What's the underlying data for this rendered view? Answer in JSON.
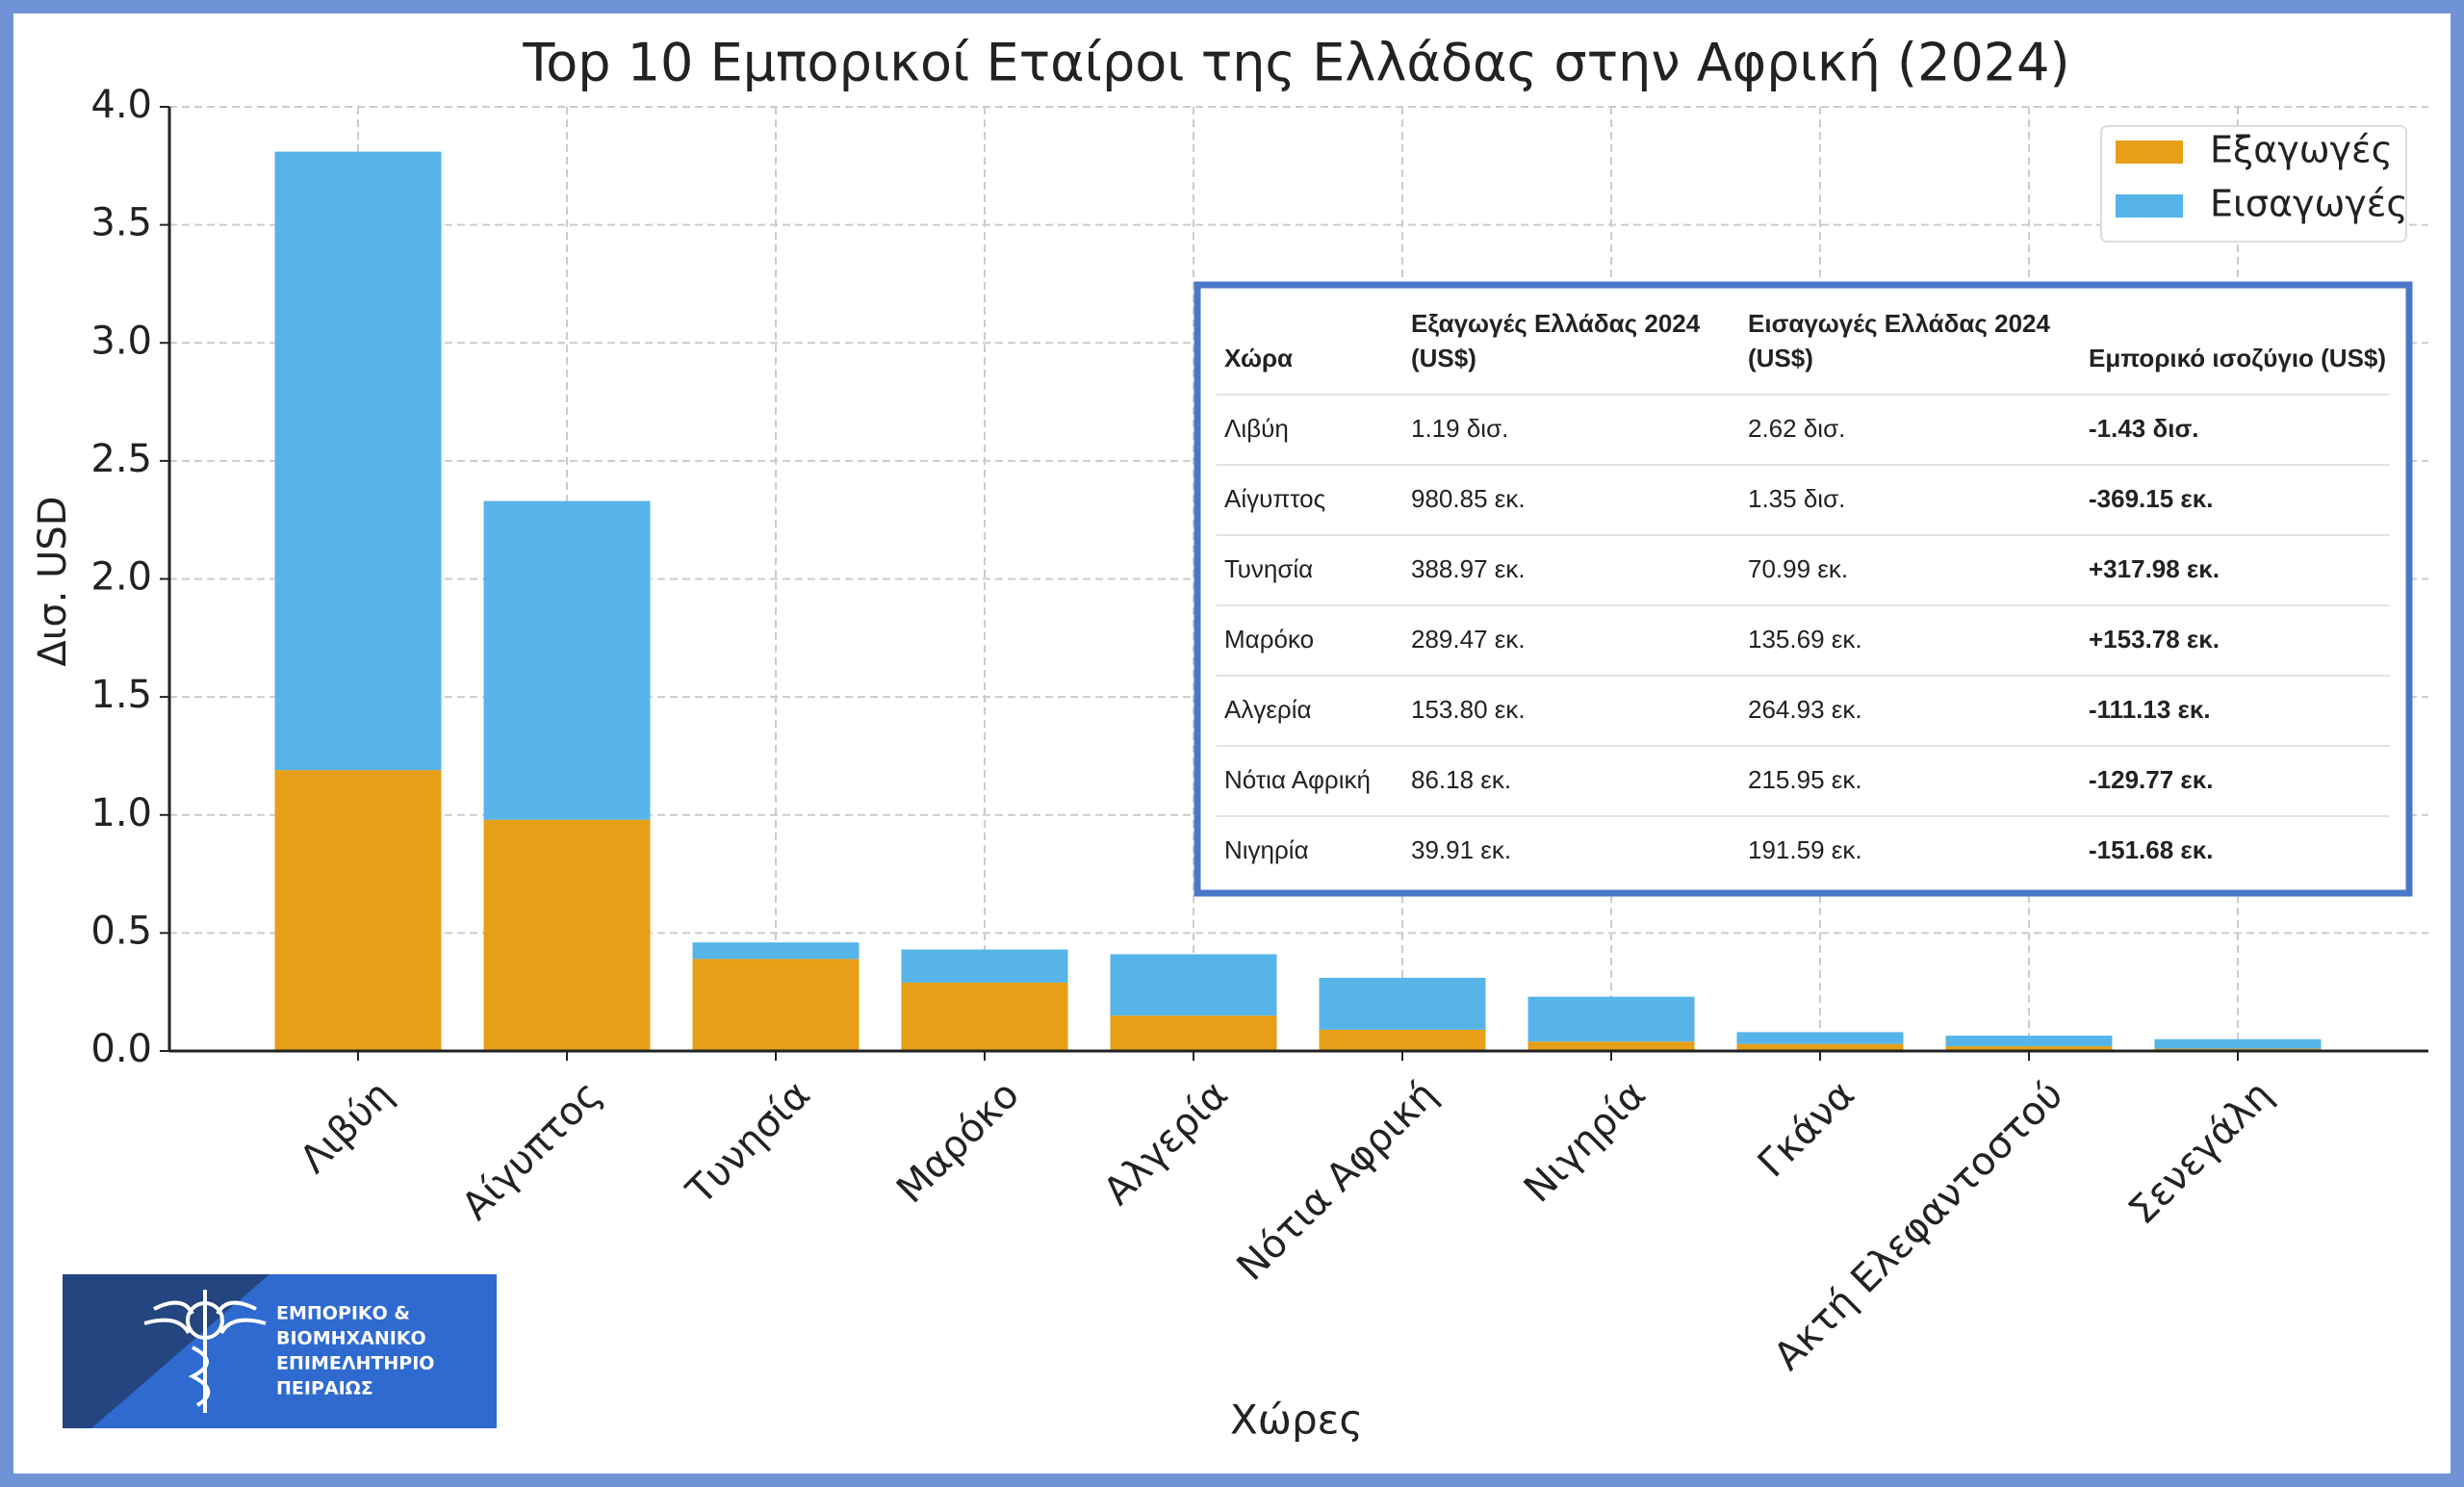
{
  "chart_data": {
    "type": "bar",
    "stacked": true,
    "title": "Top 10 Εμπορικοί Εταίροι της Ελλάδας στην Αφρική (2024)",
    "x_label": "Χώρες",
    "y_label": "Δισ. USD",
    "categories": [
      "Λιβύη",
      "Αίγυπτος",
      "Τυνησία",
      "Μαρόκο",
      "Αλγερία",
      "Νότια Αφρική",
      "Νιγηρία",
      "Γκάνα",
      "Ακτή Ελεφαντοστού",
      "Σενεγάλη"
    ],
    "series": [
      {
        "name": "Εξαγωγές",
        "color": "#e69f17",
        "values": [
          1.19,
          0.98,
          0.39,
          0.29,
          0.15,
          0.09,
          0.04,
          0.03,
          0.02,
          0.01
        ]
      },
      {
        "name": "Εισαγωγές",
        "color": "#56b4e9",
        "values": [
          2.62,
          1.35,
          0.07,
          0.14,
          0.26,
          0.22,
          0.19,
          0.05,
          0.045,
          0.04
        ]
      }
    ],
    "ylim": [
      0,
      4
    ],
    "yticks": [
      {
        "value": 0,
        "label": "0.0"
      },
      0.5,
      {
        "value": 1,
        "label": "1.0"
      },
      1.5,
      {
        "value": 2,
        "label": "2.0"
      },
      2.5,
      {
        "value": 3,
        "label": "3.0"
      },
      3.5,
      {
        "value": 4,
        "label": "4.0"
      }
    ],
    "grid": true,
    "legend": "upper right"
  },
  "table": {
    "header": [
      [
        "Χώρα"
      ],
      [
        "Εξαγωγές Ελλάδας 2024",
        "(US$)"
      ],
      [
        "Εισαγωγές Ελλάδας 2024",
        "(US$)"
      ],
      [
        "Εμπορικό ισοζύγιο (US$)"
      ]
    ],
    "rows": [
      [
        "Λιβύη",
        "1.19 δισ.",
        "2.62 δισ.",
        "-1.43 δισ."
      ],
      [
        "Αίγυπτος",
        "980.85 εκ.",
        "1.35 δισ.",
        "-369.15 εκ."
      ],
      [
        "Τυνησία",
        "388.97 εκ.",
        "70.99 εκ.",
        "+317.98 εκ."
      ],
      [
        "Μαρόκο",
        "289.47 εκ.",
        "135.69 εκ.",
        "+153.78 εκ."
      ],
      [
        "Αλγερία",
        "153.80 εκ.",
        "264.93 εκ.",
        "-111.13 εκ."
      ],
      [
        "Νότια Αφρική",
        "86.18 εκ.",
        "215.95 εκ.",
        "-129.77 εκ."
      ],
      [
        "Νιγηρία",
        "39.91 εκ.",
        "191.59 εκ.",
        "-151.68 εκ."
      ]
    ]
  },
  "logo": {
    "lines": [
      "ΕΜΠΟΡΙΚΟ &",
      "ΒΙΟΜΗΧΑΝΙΚΟ",
      "ΕΠΙΜΕΛΗΤΗΡΙΟ",
      "ΠΕΙΡΑΙΩΣ"
    ]
  }
}
